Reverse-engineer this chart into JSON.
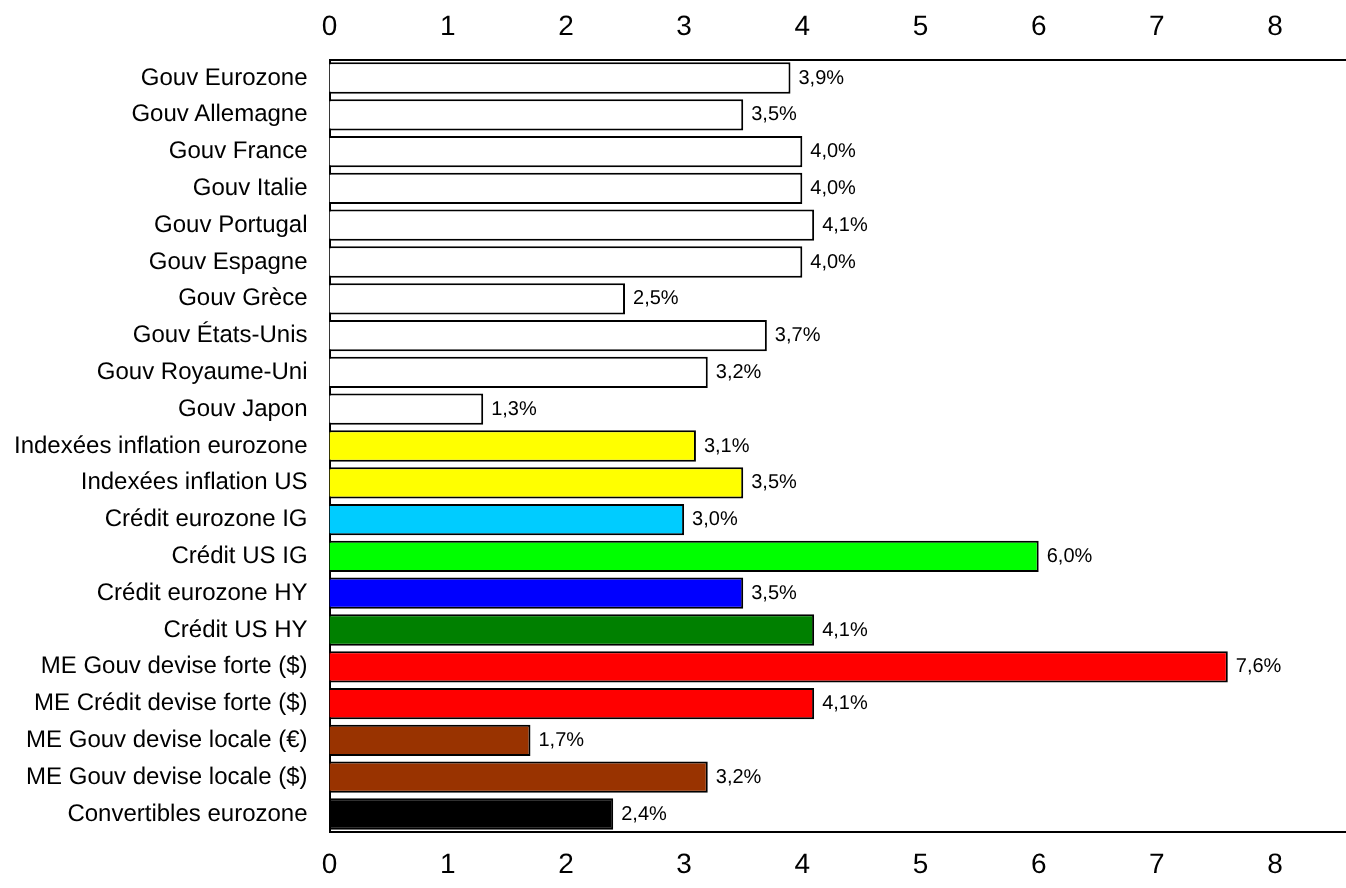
{
  "chart_data": {
    "type": "bar",
    "orientation": "horizontal",
    "categories": [
      "Gouv Eurozone",
      "Gouv Allemagne",
      "Gouv France",
      "Gouv Italie",
      "Gouv Portugal",
      "Gouv Espagne",
      "Gouv Grèce",
      "Gouv États-Unis",
      "Gouv Royaume-Uni",
      "Gouv Japon",
      "Indexées inflation eurozone",
      "Indexées inflation US",
      "Crédit eurozone IG",
      "Crédit US IG",
      "Crédit eurozone HY",
      "Crédit US HY",
      "ME Gouv devise forte ($)",
      "ME Crédit devise forte ($)",
      "ME Gouv devise locale (€)",
      "ME Gouv devise locale ($)",
      "Convertibles eurozone"
    ],
    "values": [
      3.9,
      3.5,
      4.0,
      4.0,
      4.1,
      4.0,
      2.5,
      3.7,
      3.2,
      1.3,
      3.1,
      3.5,
      3.0,
      6.0,
      3.5,
      4.1,
      7.6,
      4.1,
      1.7,
      3.2,
      2.4
    ],
    "value_labels": [
      "3,9%",
      "3,5%",
      "4,0%",
      "4,0%",
      "4,1%",
      "4,0%",
      "2,5%",
      "3,7%",
      "3,2%",
      "1,3%",
      "3,1%",
      "3,5%",
      "3,0%",
      "6,0%",
      "3,5%",
      "4,1%",
      "7,6%",
      "4,1%",
      "1,7%",
      "3,2%",
      "2,4%"
    ],
    "colors": [
      "#ffffff",
      "#ffffff",
      "#ffffff",
      "#ffffff",
      "#ffffff",
      "#ffffff",
      "#ffffff",
      "#ffffff",
      "#ffffff",
      "#ffffff",
      "#ffff00",
      "#ffff00",
      "#00ccff",
      "#00ff00",
      "#0000ff",
      "#008000",
      "#ff0000",
      "#ff0000",
      "#993300",
      "#993300",
      "#000000"
    ],
    "xlim": [
      0,
      8.6
    ],
    "xticks": [
      0,
      1,
      2,
      3,
      4,
      5,
      6,
      7,
      8
    ],
    "x2lim": [
      0,
      8.6
    ],
    "x2ticks": [
      0,
      1,
      2,
      3,
      4,
      5,
      6,
      7,
      8
    ],
    "grid": false,
    "legend": false
  }
}
